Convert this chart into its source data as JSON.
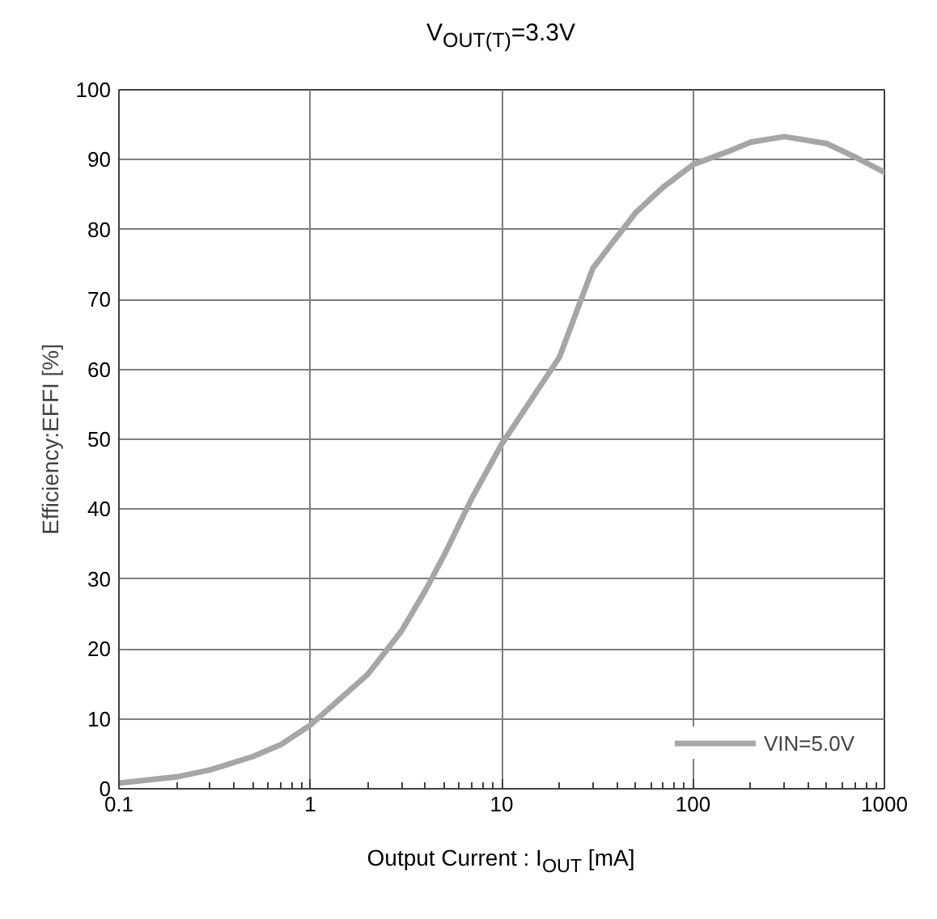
{
  "chart_data": {
    "type": "line",
    "title": "V$_{OUT(T)}$=3.3V",
    "xlabel": "Output Current : I$_{OUT}$ [mA]",
    "ylabel": "Efficiency:EFFI [%]",
    "x": [
      0.1,
      0.2,
      0.3,
      0.5,
      0.7,
      1,
      2,
      3,
      4,
      5,
      7,
      10,
      20,
      30,
      50,
      70,
      100,
      150,
      200,
      300,
      500,
      700,
      1000
    ],
    "series": [
      {
        "name": "VIN=5.0V",
        "color": "#a6a6a6",
        "values": [
          0.8,
          1.7,
          2.7,
          4.6,
          6.3,
          9.1,
          16.4,
          22.6,
          28.4,
          33.4,
          41.6,
          49.3,
          61.7,
          74.5,
          82.4,
          86.1,
          89.3,
          91.1,
          92.5,
          93.3,
          92.3,
          90.4,
          88.2
        ]
      }
    ],
    "xlim": [
      0.1,
      1000
    ],
    "ylim": [
      0,
      100
    ],
    "xticks": [
      0.1,
      1,
      10,
      100,
      1000
    ],
    "yticks": [
      0,
      10,
      20,
      30,
      40,
      50,
      60,
      70,
      80,
      90,
      100
    ],
    "log": "x",
    "grid": true,
    "legend": "bottom right",
    "marker": "none",
    "line_style": "solid"
  }
}
